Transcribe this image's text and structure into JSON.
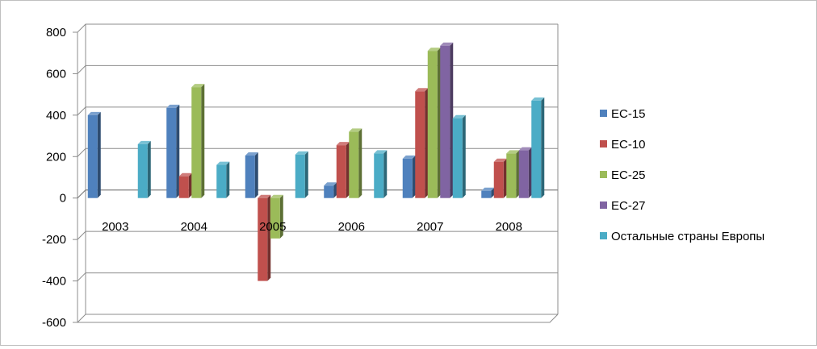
{
  "chart_data": {
    "type": "bar",
    "categories": [
      "2003",
      "2004",
      "2005",
      "2006",
      "2007",
      "2008"
    ],
    "series": [
      {
        "name": "EC-15",
        "color": "#4F81BD",
        "values": [
          400,
          435,
          205,
          60,
          190,
          35
        ]
      },
      {
        "name": "EC-10",
        "color": "#C0504D",
        "values": [
          null,
          105,
          -400,
          255,
          515,
          175
        ]
      },
      {
        "name": "EC-25",
        "color": "#9BBB59",
        "values": [
          null,
          535,
          -195,
          320,
          710,
          215
        ]
      },
      {
        "name": "EC-27",
        "color": "#8064A2",
        "values": [
          null,
          null,
          null,
          null,
          735,
          230
        ]
      },
      {
        "name": "Остальные страны Европы",
        "color": "#4BACC6",
        "values": [
          260,
          160,
          210,
          215,
          385,
          470
        ]
      }
    ],
    "yticks": [
      800,
      600,
      400,
      200,
      0,
      -200,
      -400,
      -600
    ],
    "ylim": [
      -600,
      800
    ],
    "grid": true,
    "legend_position": "right"
  }
}
